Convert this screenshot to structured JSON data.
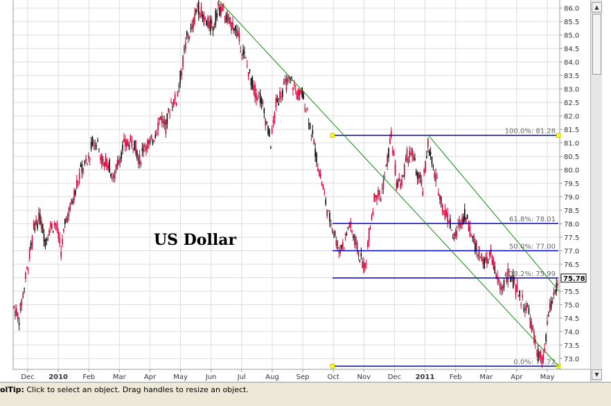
{
  "chart_data": {
    "type": "candlestick",
    "title": "US Dollar",
    "y_axis": {
      "ylim": [
        72.6,
        86.3
      ],
      "ticks": [
        "73.0",
        "73.5",
        "74.0",
        "74.5",
        "75.0",
        "75.5",
        "76.0",
        "76.5",
        "77.0",
        "77.5",
        "78.0",
        "78.5",
        "79.0",
        "79.5",
        "80.0",
        "80.5",
        "81.0",
        "81.5",
        "82.0",
        "82.5",
        "83.0",
        "83.5",
        "84.0",
        "84.5",
        "85.0",
        "85.5",
        "86.0"
      ],
      "position": "right"
    },
    "x_axis": {
      "labels": [
        {
          "text": "Dec",
          "bold": false
        },
        {
          "text": "2010",
          "bold": true
        },
        {
          "text": "Feb",
          "bold": false
        },
        {
          "text": "Mar",
          "bold": false
        },
        {
          "text": "Apr",
          "bold": false
        },
        {
          "text": "May",
          "bold": false
        },
        {
          "text": "Jun",
          "bold": false
        },
        {
          "text": "Jul",
          "bold": false
        },
        {
          "text": "Aug",
          "bold": false
        },
        {
          "text": "Sep",
          "bold": false
        },
        {
          "text": "Oct",
          "bold": false
        },
        {
          "text": "Nov",
          "bold": false
        },
        {
          "text": "Dec",
          "bold": false
        },
        {
          "text": "2011",
          "bold": true
        },
        {
          "text": "Feb",
          "bold": false
        },
        {
          "text": "Mar",
          "bold": false
        },
        {
          "text": "Apr",
          "bold": false
        },
        {
          "text": "May",
          "bold": false
        }
      ]
    },
    "grid": true,
    "series": [
      {
        "points": [
          [
            0,
            74.9
          ],
          [
            4,
            74.5
          ],
          [
            8,
            75.7
          ],
          [
            12,
            76.8
          ],
          [
            16,
            78.0
          ],
          [
            20,
            78.2
          ],
          [
            24,
            77.4
          ],
          [
            28,
            77.9
          ],
          [
            32,
            78.0
          ],
          [
            36,
            77.0
          ],
          [
            40,
            78.2
          ],
          [
            44,
            78.7
          ],
          [
            48,
            79.5
          ],
          [
            52,
            80.1
          ],
          [
            56,
            80.2
          ],
          [
            60,
            81.0
          ],
          [
            64,
            81.0
          ],
          [
            68,
            80.2
          ],
          [
            72,
            80.3
          ],
          [
            76,
            79.6
          ],
          [
            80,
            80.4
          ],
          [
            84,
            80.9
          ],
          [
            88,
            81.0
          ],
          [
            92,
            81.0
          ],
          [
            96,
            80.3
          ],
          [
            100,
            81.0
          ],
          [
            104,
            80.9
          ],
          [
            108,
            81.4
          ],
          [
            112,
            82.0
          ],
          [
            116,
            81.6
          ],
          [
            120,
            82.5
          ],
          [
            124,
            82.6
          ],
          [
            128,
            83.7
          ],
          [
            132,
            84.9
          ],
          [
            136,
            85.2
          ],
          [
            140,
            86.1
          ],
          [
            144,
            85.7
          ],
          [
            148,
            85.4
          ],
          [
            152,
            85.3
          ],
          [
            156,
            86.0
          ],
          [
            160,
            85.9
          ],
          [
            164,
            85.4
          ],
          [
            168,
            85.4
          ],
          [
            172,
            84.8
          ],
          [
            176,
            84.2
          ],
          [
            180,
            83.5
          ],
          [
            184,
            82.9
          ],
          [
            188,
            82.7
          ],
          [
            192,
            81.9
          ],
          [
            196,
            81.0
          ],
          [
            200,
            82.4
          ],
          [
            204,
            82.9
          ],
          [
            208,
            83.2
          ],
          [
            212,
            83.3
          ],
          [
            216,
            82.8
          ],
          [
            220,
            82.8
          ],
          [
            224,
            82.2
          ],
          [
            228,
            81.2
          ],
          [
            232,
            80.2
          ],
          [
            236,
            79.3
          ],
          [
            240,
            78.3
          ],
          [
            244,
            77.8
          ],
          [
            248,
            77.0
          ],
          [
            252,
            77.3
          ],
          [
            256,
            78.0
          ],
          [
            260,
            77.4
          ],
          [
            264,
            76.8
          ],
          [
            268,
            76.3
          ],
          [
            272,
            78.0
          ],
          [
            276,
            79.2
          ],
          [
            280,
            79.0
          ],
          [
            284,
            80.0
          ],
          [
            288,
            81.3
          ],
          [
            292,
            79.5
          ],
          [
            296,
            79.5
          ],
          [
            300,
            80.5
          ],
          [
            304,
            80.6
          ],
          [
            308,
            79.8
          ],
          [
            312,
            79.3
          ],
          [
            316,
            81.0
          ],
          [
            320,
            80.0
          ],
          [
            324,
            79.3
          ],
          [
            328,
            78.5
          ],
          [
            332,
            78.2
          ],
          [
            336,
            77.4
          ],
          [
            340,
            78.0
          ],
          [
            344,
            78.4
          ],
          [
            348,
            77.8
          ],
          [
            352,
            77.2
          ],
          [
            356,
            76.8
          ],
          [
            360,
            76.5
          ],
          [
            364,
            76.9
          ],
          [
            368,
            76.0
          ],
          [
            372,
            75.6
          ],
          [
            376,
            76.1
          ],
          [
            380,
            76.0
          ],
          [
            384,
            75.5
          ],
          [
            388,
            75.1
          ],
          [
            392,
            74.8
          ],
          [
            396,
            74.0
          ],
          [
            400,
            73.1
          ],
          [
            404,
            72.9
          ],
          [
            408,
            74.6
          ],
          [
            412,
            75.4
          ],
          [
            416,
            75.78
          ]
        ]
      }
    ],
    "trendlines": [
      {
        "from": [
          156,
          86.3
        ],
        "to": [
          416,
          72.7
        ]
      },
      {
        "from": [
          316,
          81.3
        ],
        "to": [
          416,
          75.5
        ]
      }
    ],
    "fibonacci": [
      {
        "label": "100.0%: 81.28",
        "value": 81.28
      },
      {
        "label": "61.8%: 78.01",
        "value": 78.01
      },
      {
        "label": "50.0%: 77.00",
        "value": 77.0
      },
      {
        "label": "38.2%: 75.99",
        "value": 75.99
      },
      {
        "label": "0.0%: 72.72",
        "value": 72.72
      }
    ],
    "current_price": "75.78",
    "colors": {
      "candles": "#cc0033",
      "candles_alt": "#000000",
      "fib": "#0000cc",
      "trend": "#0a8a0a",
      "handle": "#ffff00",
      "grid": "#dddddd"
    }
  },
  "status_bar": {
    "label": "olTip:",
    "text": " Click to select an object. Drag handles to resize an object."
  }
}
